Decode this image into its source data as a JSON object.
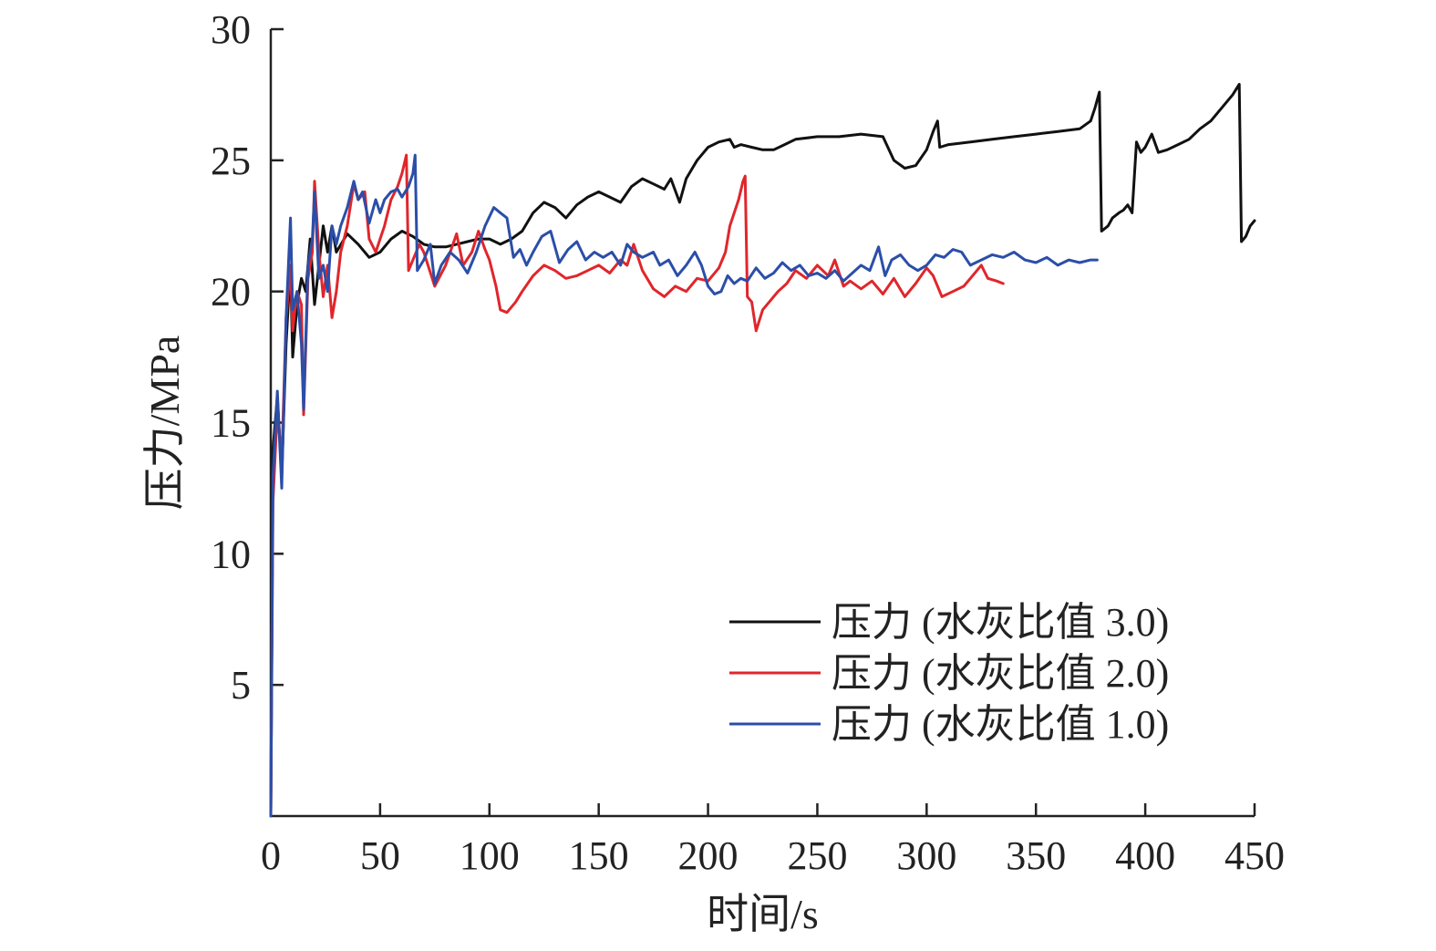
{
  "chart_data": {
    "type": "line",
    "title": "",
    "xlabel": "时间/s",
    "ylabel": "压力/MPa",
    "xlim": [
      0,
      450
    ],
    "ylim": [
      0,
      30
    ],
    "x_ticks": [
      0,
      50,
      100,
      150,
      200,
      250,
      300,
      350,
      400,
      450
    ],
    "x_tick_labels": [
      "0",
      "50",
      "100",
      "150",
      "200",
      "250",
      "300",
      "350",
      "400",
      "450"
    ],
    "y_ticks": [
      5,
      10,
      15,
      20,
      25,
      30
    ],
    "y_tick_labels": [
      "5",
      "10",
      "15",
      "20",
      "25",
      "30"
    ],
    "grid": false,
    "legend_position": "bottom-right",
    "series": [
      {
        "name": "压力 (水灰比值 3.0)",
        "color": "#111111",
        "points": [
          [
            0,
            0
          ],
          [
            1,
            14
          ],
          [
            3,
            16
          ],
          [
            5,
            13
          ],
          [
            7,
            18
          ],
          [
            9,
            21
          ],
          [
            10,
            17.5
          ],
          [
            12,
            19.5
          ],
          [
            14,
            20.5
          ],
          [
            16,
            20
          ],
          [
            18,
            22
          ],
          [
            20,
            19.5
          ],
          [
            22,
            21
          ],
          [
            24,
            22.5
          ],
          [
            26,
            21.5
          ],
          [
            28,
            22.5
          ],
          [
            30,
            21.5
          ],
          [
            35,
            22.2
          ],
          [
            40,
            21.8
          ],
          [
            45,
            21.3
          ],
          [
            50,
            21.5
          ],
          [
            55,
            22
          ],
          [
            60,
            22.3
          ],
          [
            65,
            22.1
          ],
          [
            70,
            21.8
          ],
          [
            75,
            21.7
          ],
          [
            80,
            21.7
          ],
          [
            85,
            21.8
          ],
          [
            90,
            21.9
          ],
          [
            95,
            22
          ],
          [
            100,
            22
          ],
          [
            105,
            21.8
          ],
          [
            110,
            22
          ],
          [
            115,
            22.3
          ],
          [
            120,
            23
          ],
          [
            125,
            23.4
          ],
          [
            130,
            23.2
          ],
          [
            135,
            22.8
          ],
          [
            140,
            23.3
          ],
          [
            145,
            23.6
          ],
          [
            150,
            23.8
          ],
          [
            155,
            23.6
          ],
          [
            160,
            23.4
          ],
          [
            165,
            24
          ],
          [
            170,
            24.3
          ],
          [
            175,
            24.1
          ],
          [
            180,
            23.9
          ],
          [
            183,
            24.3
          ],
          [
            187,
            23.4
          ],
          [
            190,
            24.3
          ],
          [
            195,
            25
          ],
          [
            200,
            25.5
          ],
          [
            205,
            25.7
          ],
          [
            210,
            25.8
          ],
          [
            212,
            25.5
          ],
          [
            215,
            25.6
          ],
          [
            220,
            25.5
          ],
          [
            225,
            25.4
          ],
          [
            230,
            25.4
          ],
          [
            235,
            25.6
          ],
          [
            240,
            25.8
          ],
          [
            250,
            25.9
          ],
          [
            260,
            25.9
          ],
          [
            270,
            26
          ],
          [
            280,
            25.9
          ],
          [
            285,
            25
          ],
          [
            290,
            24.7
          ],
          [
            295,
            24.8
          ],
          [
            300,
            25.4
          ],
          [
            303,
            26.1
          ],
          [
            305,
            26.5
          ],
          [
            306,
            25.5
          ],
          [
            310,
            25.6
          ],
          [
            320,
            25.7
          ],
          [
            330,
            25.8
          ],
          [
            340,
            25.9
          ],
          [
            350,
            26
          ],
          [
            360,
            26.1
          ],
          [
            370,
            26.2
          ],
          [
            375,
            26.5
          ],
          [
            377,
            27
          ],
          [
            379,
            27.6
          ],
          [
            380,
            22.3
          ],
          [
            383,
            22.5
          ],
          [
            385,
            22.8
          ],
          [
            388,
            23
          ],
          [
            390,
            23.1
          ],
          [
            392,
            23.3
          ],
          [
            394,
            23
          ],
          [
            396,
            25.7
          ],
          [
            398,
            25.3
          ],
          [
            400,
            25.5
          ],
          [
            403,
            26
          ],
          [
            406,
            25.3
          ],
          [
            410,
            25.4
          ],
          [
            415,
            25.6
          ],
          [
            420,
            25.8
          ],
          [
            425,
            26.2
          ],
          [
            430,
            26.5
          ],
          [
            435,
            27
          ],
          [
            440,
            27.5
          ],
          [
            443,
            27.9
          ],
          [
            444,
            21.9
          ],
          [
            446,
            22.1
          ],
          [
            448,
            22.5
          ],
          [
            450,
            22.7
          ]
        ]
      },
      {
        "name": "压力 (水灰比值 2.0)",
        "color": "#e0262b",
        "points": [
          [
            0,
            0
          ],
          [
            1,
            12
          ],
          [
            3,
            15.5
          ],
          [
            5,
            13.5
          ],
          [
            7,
            19
          ],
          [
            9,
            21
          ],
          [
            10,
            18.5
          ],
          [
            12,
            20
          ],
          [
            14,
            19.5
          ],
          [
            15,
            15.3
          ],
          [
            17,
            20.5
          ],
          [
            19,
            21.5
          ],
          [
            20,
            24.2
          ],
          [
            22,
            21.5
          ],
          [
            24,
            19.8
          ],
          [
            26,
            21
          ],
          [
            28,
            19
          ],
          [
            30,
            20
          ],
          [
            32,
            21.5
          ],
          [
            35,
            22.5
          ],
          [
            38,
            24.1
          ],
          [
            40,
            23.5
          ],
          [
            43,
            23.8
          ],
          [
            45,
            22
          ],
          [
            48,
            21.5
          ],
          [
            50,
            22
          ],
          [
            52,
            22.5
          ],
          [
            55,
            23.5
          ],
          [
            58,
            24
          ],
          [
            60,
            24.5
          ],
          [
            62,
            25.2
          ],
          [
            63,
            20.8
          ],
          [
            65,
            21.2
          ],
          [
            68,
            21.8
          ],
          [
            70,
            21.5
          ],
          [
            75,
            20.2
          ],
          [
            80,
            21
          ],
          [
            85,
            22.2
          ],
          [
            88,
            21
          ],
          [
            92,
            21.5
          ],
          [
            95,
            22.3
          ],
          [
            98,
            21.6
          ],
          [
            100,
            21.2
          ],
          [
            103,
            20.2
          ],
          [
            105,
            19.3
          ],
          [
            108,
            19.2
          ],
          [
            112,
            19.6
          ],
          [
            115,
            20
          ],
          [
            120,
            20.6
          ],
          [
            125,
            21
          ],
          [
            130,
            20.8
          ],
          [
            135,
            20.5
          ],
          [
            140,
            20.6
          ],
          [
            145,
            20.8
          ],
          [
            150,
            21
          ],
          [
            155,
            20.7
          ],
          [
            160,
            21.2
          ],
          [
            163,
            21
          ],
          [
            166,
            21.8
          ],
          [
            170,
            20.8
          ],
          [
            175,
            20.1
          ],
          [
            180,
            19.8
          ],
          [
            185,
            20.2
          ],
          [
            190,
            20
          ],
          [
            195,
            20.5
          ],
          [
            200,
            20.4
          ],
          [
            205,
            20.9
          ],
          [
            208,
            21.5
          ],
          [
            210,
            22.5
          ],
          [
            212,
            23
          ],
          [
            214,
            23.5
          ],
          [
            216,
            24.2
          ],
          [
            217,
            24.4
          ],
          [
            218,
            19.8
          ],
          [
            220,
            19.6
          ],
          [
            222,
            18.5
          ],
          [
            225,
            19.3
          ],
          [
            228,
            19.6
          ],
          [
            232,
            20
          ],
          [
            236,
            20.3
          ],
          [
            240,
            20.8
          ],
          [
            245,
            20.5
          ],
          [
            250,
            21
          ],
          [
            255,
            20.6
          ],
          [
            258,
            21.2
          ],
          [
            262,
            20.2
          ],
          [
            265,
            20.4
          ],
          [
            270,
            20.1
          ],
          [
            275,
            20.4
          ],
          [
            280,
            19.9
          ],
          [
            285,
            20.5
          ],
          [
            290,
            19.8
          ],
          [
            295,
            20.3
          ],
          [
            300,
            20.9
          ],
          [
            303,
            20.6
          ],
          [
            307,
            19.8
          ],
          [
            312,
            20
          ],
          [
            317,
            20.2
          ],
          [
            320,
            20.5
          ],
          [
            325,
            21
          ],
          [
            328,
            20.5
          ],
          [
            332,
            20.4
          ],
          [
            335,
            20.3
          ]
        ]
      },
      {
        "name": "压力 (水灰比值 1.0)",
        "color": "#2b4ea8",
        "points": [
          [
            0,
            0
          ],
          [
            1,
            13
          ],
          [
            3,
            16.2
          ],
          [
            5,
            12.5
          ],
          [
            7,
            19
          ],
          [
            9,
            22.8
          ],
          [
            10,
            19.3
          ],
          [
            12,
            20
          ],
          [
            14,
            18
          ],
          [
            15,
            15.5
          ],
          [
            17,
            21
          ],
          [
            19,
            22
          ],
          [
            20,
            23.8
          ],
          [
            22,
            20.5
          ],
          [
            24,
            21
          ],
          [
            26,
            20
          ],
          [
            28,
            22.5
          ],
          [
            30,
            21.8
          ],
          [
            32,
            22.5
          ],
          [
            35,
            23.2
          ],
          [
            38,
            24.2
          ],
          [
            40,
            23.5
          ],
          [
            42,
            23.8
          ],
          [
            45,
            22.6
          ],
          [
            48,
            23.5
          ],
          [
            50,
            23
          ],
          [
            52,
            23.5
          ],
          [
            55,
            23.8
          ],
          [
            58,
            23.9
          ],
          [
            60,
            23.6
          ],
          [
            63,
            24
          ],
          [
            65,
            24.5
          ],
          [
            66,
            25.2
          ],
          [
            67,
            20.8
          ],
          [
            70,
            21.2
          ],
          [
            73,
            21.8
          ],
          [
            75,
            20.3
          ],
          [
            78,
            21
          ],
          [
            82,
            21.5
          ],
          [
            86,
            21.2
          ],
          [
            90,
            20.7
          ],
          [
            94,
            21.5
          ],
          [
            98,
            22.5
          ],
          [
            102,
            23.2
          ],
          [
            105,
            23
          ],
          [
            108,
            22.8
          ],
          [
            111,
            21.3
          ],
          [
            114,
            21.6
          ],
          [
            117,
            21
          ],
          [
            120,
            21.5
          ],
          [
            124,
            22.1
          ],
          [
            128,
            22.3
          ],
          [
            132,
            21.1
          ],
          [
            136,
            21.6
          ],
          [
            140,
            21.9
          ],
          [
            144,
            21.2
          ],
          [
            148,
            21.5
          ],
          [
            152,
            21.3
          ],
          [
            156,
            21.5
          ],
          [
            160,
            21
          ],
          [
            163,
            21.8
          ],
          [
            166,
            21.5
          ],
          [
            170,
            21.3
          ],
          [
            175,
            21.5
          ],
          [
            178,
            21
          ],
          [
            182,
            21.2
          ],
          [
            186,
            20.6
          ],
          [
            190,
            21
          ],
          [
            194,
            21.5
          ],
          [
            197,
            21
          ],
          [
            200,
            20.2
          ],
          [
            203,
            19.9
          ],
          [
            206,
            20
          ],
          [
            209,
            20.6
          ],
          [
            212,
            20.3
          ],
          [
            215,
            20.5
          ],
          [
            218,
            20.4
          ],
          [
            222,
            20.9
          ],
          [
            226,
            20.5
          ],
          [
            230,
            20.7
          ],
          [
            234,
            21.1
          ],
          [
            238,
            20.8
          ],
          [
            242,
            21
          ],
          [
            246,
            20.6
          ],
          [
            250,
            20.7
          ],
          [
            254,
            20.5
          ],
          [
            258,
            20.8
          ],
          [
            262,
            20.4
          ],
          [
            266,
            20.7
          ],
          [
            270,
            21
          ],
          [
            274,
            20.8
          ],
          [
            278,
            21.7
          ],
          [
            281,
            20.6
          ],
          [
            284,
            21.2
          ],
          [
            288,
            21.4
          ],
          [
            292,
            21
          ],
          [
            296,
            20.8
          ],
          [
            300,
            21
          ],
          [
            304,
            21.4
          ],
          [
            308,
            21.3
          ],
          [
            312,
            21.6
          ],
          [
            316,
            21.5
          ],
          [
            320,
            21
          ],
          [
            325,
            21.2
          ],
          [
            330,
            21.4
          ],
          [
            335,
            21.3
          ],
          [
            340,
            21.5
          ],
          [
            345,
            21.2
          ],
          [
            350,
            21.1
          ],
          [
            355,
            21.3
          ],
          [
            360,
            21
          ],
          [
            365,
            21.2
          ],
          [
            370,
            21.1
          ],
          [
            375,
            21.2
          ],
          [
            378,
            21.2
          ]
        ]
      }
    ]
  }
}
